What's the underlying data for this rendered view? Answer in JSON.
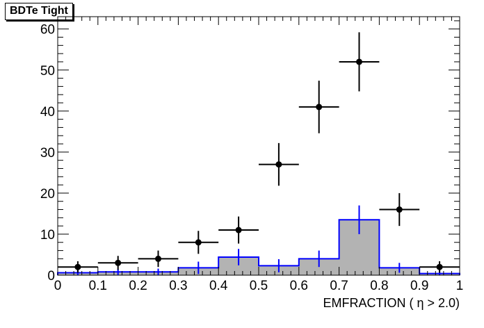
{
  "chart_data": {
    "type": "histogram",
    "title": "BDTe Tight",
    "xlabel": "EMFRACTION ( η > 2.0)",
    "ylabel": "",
    "xlim": [
      0,
      1
    ],
    "ylim": [
      0,
      63
    ],
    "grid": false,
    "legend": "none",
    "x_tick_labels": [
      "0",
      "0.1",
      "0.2",
      "0.3",
      "0.4",
      "0.5",
      "0.6",
      "0.7",
      "0.8",
      "0.9",
      "1"
    ],
    "y_tick_labels": [
      "0",
      "10",
      "20",
      "30",
      "40",
      "50",
      "60"
    ],
    "bin_edges": [
      0,
      0.1,
      0.2,
      0.3,
      0.4,
      0.5,
      0.6,
      0.7,
      0.8,
      0.9,
      1.0
    ],
    "series": [
      {
        "kind": "filled_histogram",
        "color": "#0000ff",
        "fill": "#b3b3b3",
        "values": [
          0.6,
          0.8,
          0.8,
          1.8,
          4.4,
          2.3,
          4.0,
          13.5,
          1.8,
          0.4
        ],
        "errors": [
          0.6,
          0.7,
          0.8,
          1.5,
          2.0,
          1.6,
          2.0,
          3.5,
          1.2,
          0.4
        ]
      },
      {
        "kind": "data_points",
        "color": "#000000",
        "values": [
          2,
          3,
          4,
          8,
          11,
          27,
          41,
          52,
          16,
          2
        ],
        "errors": [
          1.4,
          1.7,
          2.0,
          2.8,
          3.3,
          5.2,
          6.4,
          7.2,
          4.0,
          1.4
        ]
      }
    ]
  }
}
